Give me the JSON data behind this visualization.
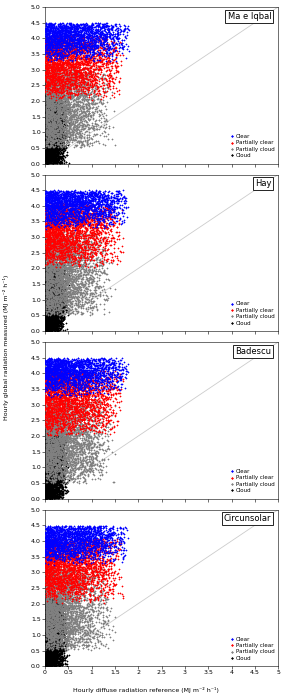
{
  "subplots": [
    "Ma e Iqbal",
    "Hay",
    "Badescu",
    "Circunsolar"
  ],
  "colors": {
    "Clear": "#0000ff",
    "Partially clear": "#ff0000",
    "Partially cloud": "#808080",
    "Cloud": "#000000"
  },
  "legend_labels": [
    "Clear",
    "Partially clear",
    "Partially cloud",
    "Cloud"
  ],
  "xlim": [
    0,
    5.0
  ],
  "ylim": [
    0,
    5.0
  ],
  "xticks": [
    0.0,
    0.5,
    1.0,
    1.5,
    2.0,
    2.5,
    3.0,
    3.5,
    4.0,
    4.5,
    5.0
  ],
  "yticks": [
    0.0,
    0.5,
    1.0,
    1.5,
    2.0,
    2.5,
    3.0,
    3.5,
    4.0,
    4.5,
    5.0
  ],
  "xlabel": "Hourly diffuse radiation reference (MJ m⁻² h⁻¹)",
  "ylabel": "Hourly global radiation measured (MJ m⁻² h⁻¹)",
  "marker": "D",
  "markersize": 1.2,
  "seed": 42,
  "cluster_params": {
    "Cloud": {
      "x_max": 0.55,
      "y_lo": 0.0,
      "y_hi": 2.2,
      "n": 4000,
      "x_beta_a": 1.0,
      "x_beta_b": 3.0,
      "y_beta_a": 1.2,
      "y_beta_b": 1.5
    },
    "Partially cloud": {
      "x_max": 1.55,
      "y_lo": 0.5,
      "y_hi": 3.2,
      "n": 3000,
      "x_beta_a": 1.0,
      "x_beta_b": 2.5,
      "y_beta_a": 1.5,
      "y_beta_b": 1.5
    },
    "Partially clear": {
      "x_max": 1.7,
      "y_lo": 2.0,
      "y_hi": 4.1,
      "n": 2500,
      "x_beta_a": 1.0,
      "x_beta_b": 2.0,
      "y_beta_a": 2.0,
      "y_beta_b": 1.5
    },
    "Clear": {
      "x_max": 1.8,
      "y_lo": 3.2,
      "y_hi": 4.5,
      "n": 2000,
      "x_beta_a": 1.0,
      "x_beta_b": 1.8,
      "y_beta_a": 2.5,
      "y_beta_b": 1.5
    }
  },
  "draw_order": [
    "Cloud",
    "Partially cloud",
    "Partially clear",
    "Clear"
  ]
}
